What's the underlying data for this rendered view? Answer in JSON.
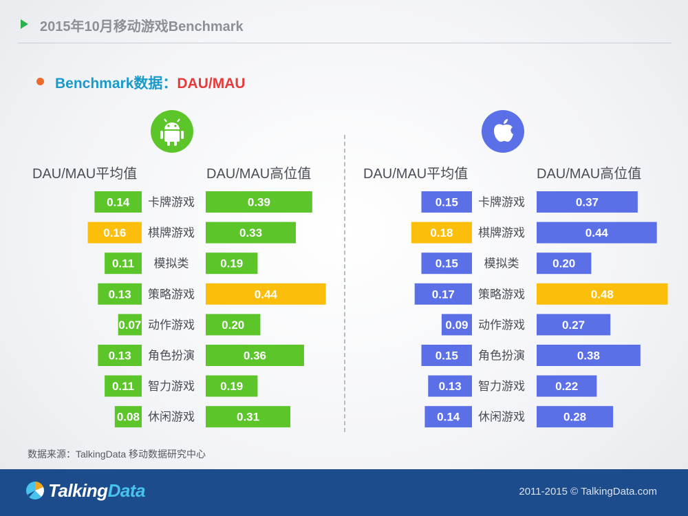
{
  "header": {
    "title": "2015年10月移动游戏Benchmark"
  },
  "subtitle": {
    "prefix": "Benchmark数据：",
    "emphasis": "DAU/MAU"
  },
  "icons": {
    "android": "android-icon",
    "apple": "apple-icon",
    "play": "play-triangle-icon"
  },
  "colors": {
    "android": "#5cc52a",
    "ios": "#5b6fe6",
    "highlight": "#fbbf0b"
  },
  "column_headers": {
    "android_avg": "DAU/MAU平均值",
    "android_high": "DAU/MAU高位值",
    "ios_avg": "DAU/MAU平均值",
    "ios_high": "DAU/MAU高位值"
  },
  "chart_data": [
    {
      "type": "bar",
      "platform": "android",
      "categories": [
        "卡牌游戏",
        "棋牌游戏",
        "模拟类",
        "策略游戏",
        "动作游戏",
        "角色扮演",
        "智力游戏",
        "休闲游戏"
      ],
      "series": [
        {
          "name": "DAU/MAU平均值",
          "values": [
            0.14,
            0.16,
            0.11,
            0.13,
            0.07,
            0.13,
            0.11,
            0.08
          ],
          "highlight_index": 1
        },
        {
          "name": "DAU/MAU高位值",
          "values": [
            0.39,
            0.33,
            0.19,
            0.44,
            0.2,
            0.36,
            0.19,
            0.31
          ],
          "highlight_index": 3
        }
      ]
    },
    {
      "type": "bar",
      "platform": "ios",
      "categories": [
        "卡牌游戏",
        "棋牌游戏",
        "模拟类",
        "策略游戏",
        "动作游戏",
        "角色扮演",
        "智力游戏",
        "休闲游戏"
      ],
      "series": [
        {
          "name": "DAU/MAU平均值",
          "values": [
            0.15,
            0.18,
            0.15,
            0.17,
            0.09,
            0.15,
            0.13,
            0.14
          ],
          "highlight_index": 1
        },
        {
          "name": "DAU/MAU高位值",
          "values": [
            0.37,
            0.44,
            0.2,
            0.48,
            0.27,
            0.38,
            0.22,
            0.28
          ],
          "highlight_index": 3
        }
      ]
    }
  ],
  "source": "数据来源：TalkingData 移动数据研究中心",
  "footer": {
    "logo_talking": "Talking",
    "logo_data": "Data",
    "copyright": "2011-2015 © TalkingData.com"
  }
}
